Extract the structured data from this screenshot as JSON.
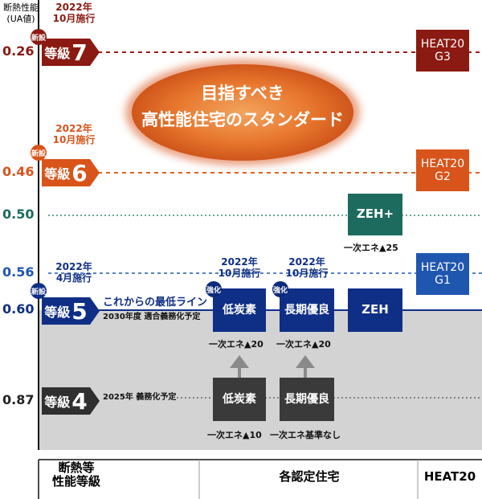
{
  "colors": {
    "grade7": "#8b1a12",
    "grade6": "#d8541a",
    "grade5": "#0f2f86",
    "grade4": "#2f2f2f",
    "teal": "#1d6a5f",
    "heat_g1": "#1f56b0",
    "band_gray": "#d3d3d3"
  },
  "chart_data": {
    "type": "table",
    "y_axis_title": "断熱性能\n(UA値)",
    "levels": [
      {
        "ua": "0.26",
        "grade_label": "等級",
        "grade_num": "7",
        "new": "新設",
        "date": "2022年\n10月施行",
        "heat20": "HEAT20\nG3"
      },
      {
        "ua": "0.46",
        "grade_label": "等級",
        "grade_num": "6",
        "new": "新設",
        "date": "2022年\n10月施行",
        "heat20": "HEAT20\nG2"
      },
      {
        "ua": "0.50",
        "zeh_plus": "ZEH+",
        "zeh_plus_note": "一次エネ▲25"
      },
      {
        "ua": "0.56",
        "date": "2022年\n4月施行",
        "heat20": "HEAT20\nG1"
      },
      {
        "ua": "0.60",
        "grade_label": "等級",
        "grade_num": "5",
        "new": "新設",
        "baseline": "これからの最低ライン",
        "baseline_sub": "2030年度 適合義務化予定"
      },
      {
        "ua": "0.87",
        "grade_label": "等級",
        "grade_num": "4",
        "note": "2025年 義務化予定"
      }
    ],
    "center_label": "目指すべき\n高性能住宅のスタンダード",
    "certified_strengthened": [
      {
        "name": "低炭素",
        "badge": "強化",
        "date": "2022年\n10月施行",
        "note": "一次エネ▲20"
      },
      {
        "name": "長期優良",
        "badge": "強化",
        "date": "2022年\n10月施行",
        "note": "一次エネ▲20"
      },
      {
        "name": "ZEH"
      }
    ],
    "certified_current": [
      {
        "name": "低炭素",
        "note": "一次エネ▲10"
      },
      {
        "name": "長期優良",
        "note": "一次エネ基準なし"
      }
    ],
    "categories": [
      "断熱等\n性能等級",
      "各認定住宅",
      "HEAT20"
    ]
  }
}
